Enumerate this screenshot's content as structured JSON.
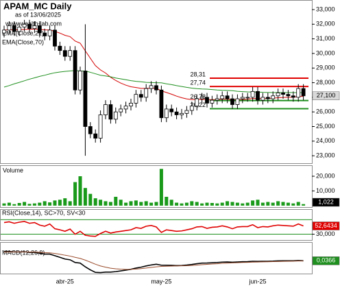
{
  "chart_data": [
    {
      "type": "candlestick",
      "title": "APAM_MC Daily",
      "subtitle": "as of 13/06/2025",
      "source": "www.wealth-lab.com",
      "categories": [
        null,
        null,
        null,
        null,
        null,
        null,
        null,
        null,
        null,
        null,
        null,
        null,
        "abr-25",
        null,
        null,
        null,
        null,
        null,
        null,
        null,
        null,
        null,
        null,
        null,
        null,
        null,
        null,
        null,
        null,
        null,
        null,
        "may-25",
        null,
        null,
        null,
        null,
        null,
        null,
        null,
        null,
        null,
        null,
        null,
        null,
        null,
        null,
        null,
        null,
        null,
        null,
        "jun-25",
        null,
        null,
        null,
        null,
        null,
        null,
        null,
        null,
        null
      ],
      "open": [
        31.4,
        31.6,
        31.9,
        31.5,
        31.8,
        32.0,
        31.7,
        31.9,
        31.4,
        31.2,
        31.6,
        30.5,
        30.2,
        29.8,
        30.2,
        27.5,
        28.8,
        25.0,
        24.5,
        24.2,
        25.8,
        26.5,
        25.5,
        26.0,
        26.2,
        26.4,
        26.6,
        27.2,
        27.0,
        27.6,
        27.8,
        27.5,
        25.6,
        26.2,
        26.0,
        25.8,
        25.9,
        26.1,
        26.4,
        26.9,
        27.0,
        26.6,
        26.8,
        26.9,
        27.1,
        26.9,
        26.5,
        26.9,
        27.0,
        27.0,
        27.4,
        26.8,
        27.0,
        26.9,
        27.1,
        27.3,
        27.2,
        27.1,
        27.0,
        27.6
      ],
      "high": [
        31.9,
        32.2,
        32.2,
        32.1,
        32.3,
        32.3,
        32.2,
        32.2,
        31.7,
        31.9,
        31.9,
        30.8,
        30.5,
        30.5,
        30.5,
        29.1,
        32.0,
        25.3,
        24.8,
        26.1,
        26.8,
        26.8,
        26.3,
        26.5,
        26.7,
        26.9,
        27.5,
        27.5,
        27.9,
        28.1,
        28.1,
        27.8,
        26.5,
        26.5,
        26.3,
        26.2,
        26.4,
        26.7,
        27.2,
        27.3,
        27.3,
        27.1,
        27.2,
        27.4,
        27.4,
        27.2,
        27.2,
        27.3,
        27.3,
        27.7,
        27.7,
        27.3,
        27.3,
        27.4,
        27.6,
        27.6,
        27.5,
        27.4,
        27.9,
        27.9
      ],
      "low": [
        31.1,
        31.3,
        31.2,
        31.2,
        31.5,
        31.4,
        31.4,
        31.1,
        30.9,
        30.9,
        30.2,
        29.9,
        29.5,
        29.5,
        27.2,
        27.2,
        23.0,
        24.2,
        23.9,
        23.9,
        25.5,
        25.2,
        25.2,
        25.7,
        25.9,
        26.1,
        26.3,
        26.7,
        26.7,
        27.3,
        27.2,
        25.3,
        25.3,
        25.7,
        25.5,
        25.5,
        25.6,
        25.8,
        26.1,
        26.6,
        26.3,
        26.3,
        26.5,
        26.6,
        26.6,
        26.2,
        26.2,
        26.6,
        26.7,
        26.7,
        26.5,
        26.5,
        26.6,
        26.6,
        26.8,
        26.9,
        26.8,
        26.7,
        26.7,
        26.8
      ],
      "close": [
        31.6,
        31.9,
        31.5,
        31.8,
        32.0,
        31.7,
        31.9,
        31.4,
        31.2,
        31.6,
        30.5,
        30.2,
        29.8,
        30.2,
        27.5,
        28.8,
        25.0,
        24.5,
        24.2,
        25.8,
        26.5,
        25.5,
        26.0,
        26.2,
        26.4,
        26.6,
        27.2,
        27.0,
        27.6,
        27.8,
        27.5,
        25.6,
        26.2,
        26.0,
        25.8,
        25.9,
        26.1,
        26.4,
        26.9,
        27.0,
        26.6,
        26.8,
        26.9,
        27.1,
        26.9,
        26.5,
        26.9,
        27.0,
        27.0,
        27.4,
        26.8,
        27.0,
        26.9,
        27.1,
        27.3,
        27.2,
        27.1,
        27.0,
        27.6,
        27.1
      ],
      "last_label": "27,100",
      "series": [
        {
          "name": "EMA(Close,21)",
          "color": "#d40000",
          "values": [
            31.6,
            31.62,
            31.61,
            31.62,
            31.65,
            31.65,
            31.67,
            31.65,
            31.61,
            31.61,
            31.51,
            31.39,
            31.24,
            31.15,
            30.85,
            30.7,
            30.18,
            29.67,
            29.17,
            28.87,
            28.66,
            28.37,
            28.15,
            27.97,
            27.83,
            27.72,
            27.67,
            27.61,
            27.61,
            27.63,
            27.62,
            27.44,
            27.33,
            27.21,
            27.08,
            26.97,
            26.89,
            26.84,
            26.85,
            26.86,
            26.84,
            26.84,
            26.84,
            26.87,
            26.87,
            26.84,
            26.84,
            26.85,
            26.87,
            26.92,
            26.91,
            26.92,
            26.92,
            26.94,
            26.97,
            26.99,
            27.0,
            27.0,
            27.06,
            27.06
          ]
        },
        {
          "name": "EMA(Close,70)",
          "color": "#1f8f1f",
          "values": [
            27.7,
            27.8,
            27.92,
            28.02,
            28.13,
            28.24,
            28.33,
            28.43,
            28.51,
            28.6,
            28.68,
            28.73,
            28.77,
            28.8,
            28.83,
            28.8,
            28.8,
            28.71,
            28.61,
            28.51,
            28.46,
            28.4,
            28.32,
            28.26,
            28.2,
            28.14,
            28.09,
            28.06,
            28.02,
            28.01,
            28.0,
            27.99,
            27.92,
            27.87,
            27.8,
            27.74,
            27.68,
            27.63,
            27.59,
            27.57,
            27.56,
            27.53,
            27.5,
            27.48,
            27.47,
            27.45,
            27.41,
            27.39,
            27.37,
            27.36,
            27.36,
            27.34,
            27.33,
            27.32,
            27.32,
            27.32,
            27.32,
            27.32,
            27.31,
            27.32
          ]
        }
      ],
      "levels": [
        {
          "value": 28.31,
          "label": "28,31",
          "color": "#e00000"
        },
        {
          "value": 27.74,
          "label": "27,74",
          "color": "#e00000"
        },
        {
          "value": 26.78,
          "label": "26,78",
          "color": "#1f8f1f"
        },
        {
          "value": 26.22,
          "label": "26,22",
          "color": "#1f8f1f"
        }
      ],
      "ylim": [
        22.49,
        33.61
      ],
      "yticks": [
        {
          "value": 23,
          "label": "23,000"
        },
        {
          "value": 24,
          "label": "24,000"
        },
        {
          "value": 25,
          "label": "25,000"
        },
        {
          "value": 26,
          "label": "26,000"
        },
        {
          "value": 27,
          "label": "27,000"
        },
        {
          "value": 28,
          "label": "28,000"
        },
        {
          "value": 29,
          "label": "29,000"
        },
        {
          "value": 30,
          "label": "30,000"
        },
        {
          "value": 31,
          "label": "31,000"
        },
        {
          "value": 32,
          "label": "32,000"
        },
        {
          "value": 33,
          "label": "33,000"
        }
      ]
    },
    {
      "type": "bar",
      "title": "Volume",
      "color": "#1a9a1a",
      "values": [
        1.5,
        2,
        1,
        1.8,
        2.5,
        1.2,
        1.5,
        2,
        3,
        2.2,
        3.5,
        4,
        5,
        3,
        16,
        20,
        12,
        8,
        5,
        4,
        3,
        2.5,
        6,
        4,
        2,
        3,
        3.5,
        2.5,
        3,
        2,
        2.5,
        25,
        6,
        4,
        2,
        1.5,
        2,
        3,
        2.5,
        1.5,
        2,
        1.8,
        1.5,
        2,
        3,
        2.5,
        2,
        1.5,
        2,
        3.5,
        4,
        2,
        2.5,
        2,
        3,
        2.5,
        2,
        1.5,
        2.5,
        1.022
      ],
      "last_label": "1,022",
      "ylim": [
        -1,
        27
      ],
      "yticks": [
        {
          "value": 10,
          "label": "10,000"
        },
        {
          "value": 20,
          "label": "20,000"
        }
      ]
    },
    {
      "type": "line",
      "title": "RSI(Close,14), SC>70, SV<30",
      "series": [
        {
          "color": "#e00000",
          "values": [
            62,
            64,
            60,
            63,
            65,
            60,
            62,
            55,
            52,
            58,
            45,
            42,
            38,
            44,
            30,
            38,
            27,
            25,
            24,
            32,
            38,
            33,
            36,
            38,
            40,
            42,
            48,
            46,
            52,
            54,
            50,
            35,
            42,
            40,
            38,
            39,
            42,
            45,
            50,
            51,
            46,
            49,
            50,
            53,
            50,
            45,
            50,
            51,
            51,
            56,
            48,
            51,
            50,
            53,
            55,
            54,
            53,
            52,
            58,
            52.6434
          ]
        }
      ],
      "last_label": "52,6434",
      "levels": [
        {
          "value": 70,
          "color": "#1f8f1f"
        },
        {
          "value": 30,
          "color": "#1f8f1f"
        }
      ],
      "ylim": [
        14,
        97
      ],
      "yticks": [
        {
          "value": 30,
          "label": "30,000"
        }
      ]
    },
    {
      "type": "line",
      "title": "MACD(12,26,9)",
      "series": [
        {
          "color": "#000000",
          "values": [
            0.8,
            0.8,
            0.75,
            0.75,
            0.77,
            0.72,
            0.72,
            0.65,
            0.58,
            0.58,
            0.45,
            0.32,
            0.18,
            0.12,
            -0.1,
            -0.15,
            -0.45,
            -0.7,
            -0.9,
            -0.92,
            -0.88,
            -0.88,
            -0.84,
            -0.78,
            -0.72,
            -0.65,
            -0.55,
            -0.48,
            -0.38,
            -0.3,
            -0.24,
            -0.32,
            -0.32,
            -0.33,
            -0.35,
            -0.34,
            -0.31,
            -0.26,
            -0.2,
            -0.15,
            -0.14,
            -0.12,
            -0.1,
            -0.07,
            -0.06,
            -0.08,
            -0.06,
            -0.04,
            -0.03,
            0.0,
            -0.01,
            0.0,
            0.0,
            0.01,
            0.03,
            0.04,
            0.04,
            0.04,
            0.06,
            0.0366
          ]
        },
        {
          "color": "#9a4a2a",
          "values": [
            0.75,
            0.76,
            0.76,
            0.76,
            0.76,
            0.75,
            0.75,
            0.73,
            0.7,
            0.68,
            0.63,
            0.57,
            0.49,
            0.42,
            0.32,
            0.23,
            0.09,
            -0.07,
            -0.24,
            -0.38,
            -0.48,
            -0.56,
            -0.61,
            -0.64,
            -0.66,
            -0.65,
            -0.63,
            -0.6,
            -0.55,
            -0.5,
            -0.45,
            -0.42,
            -0.4,
            -0.39,
            -0.38,
            -0.37,
            -0.36,
            -0.34,
            -0.31,
            -0.28,
            -0.25,
            -0.22,
            -0.2,
            -0.17,
            -0.15,
            -0.13,
            -0.12,
            -0.1,
            -0.09,
            -0.07,
            -0.06,
            -0.05,
            -0.04,
            -0.03,
            -0.02,
            -0.01,
            0.0,
            0.01,
            0.02,
            0.02
          ]
        }
      ],
      "last_label": "0,0366",
      "ylim": [
        -1.0,
        1.5
      ]
    }
  ]
}
